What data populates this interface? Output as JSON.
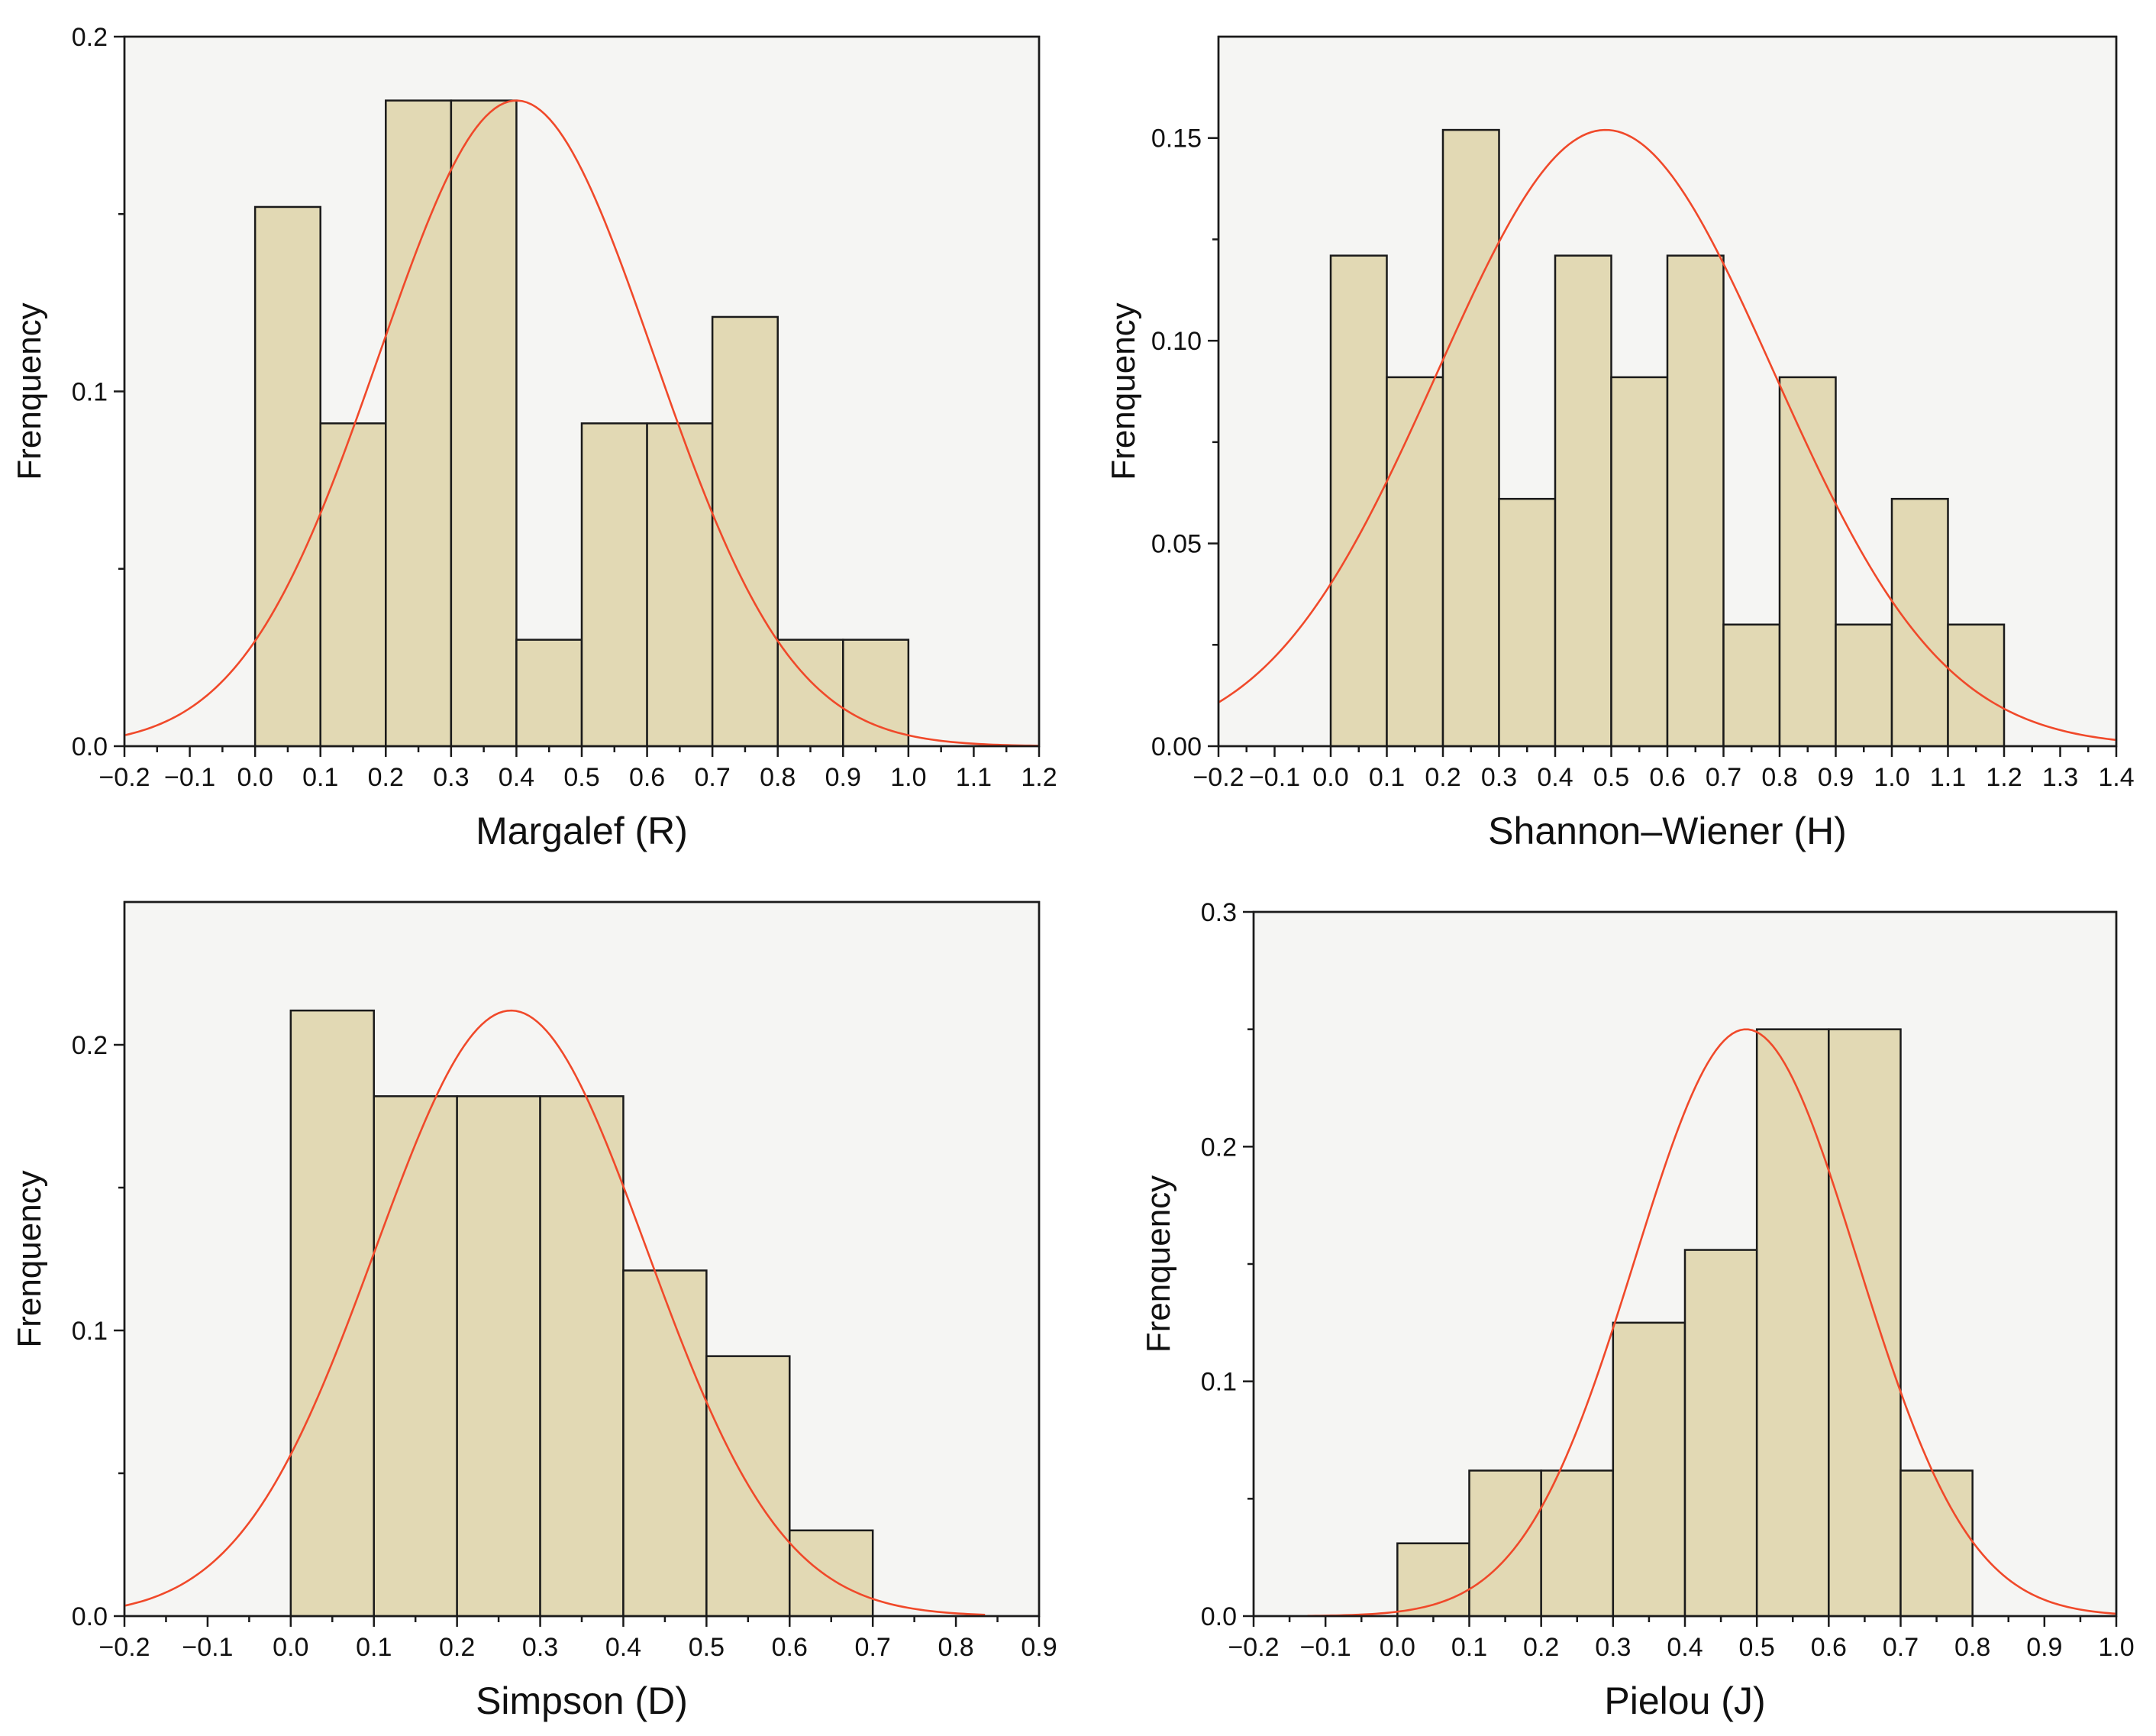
{
  "chart_data": [
    {
      "type": "bar",
      "xlabel": "Margalef (R)",
      "ylabel": "Frenquency",
      "xlim": [
        -0.2,
        1.2
      ],
      "ylim": [
        0,
        0.2
      ],
      "xticks": [
        "−0.2",
        "−0.1",
        "0.0",
        "0.1",
        "0.2",
        "0.3",
        "0.4",
        "0.5",
        "0.6",
        "0.7",
        "0.8",
        "0.9",
        "1.0",
        "1.1",
        "1.2"
      ],
      "yticks": [
        "0.0",
        "0.1",
        "0.2"
      ],
      "bins": [
        [
          0.0,
          0.1
        ],
        [
          0.1,
          0.2
        ],
        [
          0.2,
          0.3
        ],
        [
          0.3,
          0.4
        ],
        [
          0.4,
          0.5
        ],
        [
          0.5,
          0.6
        ],
        [
          0.6,
          0.7
        ],
        [
          0.7,
          0.8
        ],
        [
          0.8,
          0.9
        ],
        [
          0.9,
          1.0
        ]
      ],
      "values": [
        0.152,
        0.091,
        0.182,
        0.182,
        0.03,
        0.091,
        0.091,
        0.121,
        0.03,
        0.03
      ],
      "fit_curve": {
        "type": "normal",
        "mean": 0.4,
        "sd": 0.21,
        "peak": 0.182,
        "x_range": [
          -0.2,
          1.2
        ]
      },
      "grid": false
    },
    {
      "type": "bar",
      "xlabel": "Shannon–Wiener (H)",
      "ylabel": "Frenquency",
      "xlim": [
        -0.2,
        1.4
      ],
      "ylim": [
        0,
        0.175
      ],
      "xticks": [
        "−0.2",
        "−0.1",
        "0.0",
        "0.1",
        "0.2",
        "0.3",
        "0.4",
        "0.5",
        "0.6",
        "0.7",
        "0.8",
        "0.9",
        "1.0",
        "1.1",
        "1.2",
        "1.3",
        "1.4"
      ],
      "yticks": [
        "0.00",
        "0.05",
        "0.10",
        "0.15"
      ],
      "bins": [
        [
          0.0,
          0.1
        ],
        [
          0.1,
          0.2
        ],
        [
          0.2,
          0.3
        ],
        [
          0.3,
          0.4
        ],
        [
          0.4,
          0.5
        ],
        [
          0.5,
          0.6
        ],
        [
          0.6,
          0.7
        ],
        [
          0.7,
          0.8
        ],
        [
          0.8,
          0.9
        ],
        [
          0.9,
          1.0
        ],
        [
          1.0,
          1.1
        ],
        [
          1.1,
          1.2
        ]
      ],
      "values": [
        0.121,
        0.091,
        0.152,
        0.061,
        0.121,
        0.091,
        0.121,
        0.03,
        0.091,
        0.03,
        0.061,
        0.03
      ],
      "fit_curve": {
        "type": "normal",
        "mean": 0.49,
        "sd": 0.3,
        "peak": 0.152,
        "x_range": [
          -0.2,
          1.4
        ]
      },
      "grid": false
    },
    {
      "type": "bar",
      "xlabel": "Simpson (D)",
      "ylabel": "Frenquency",
      "xlim": [
        -0.2,
        0.9
      ],
      "ylim": [
        0,
        0.25
      ],
      "xticks": [
        "−0.2",
        "−0.1",
        "0.0",
        "0.1",
        "0.2",
        "0.3",
        "0.4",
        "0.5",
        "0.6",
        "0.7",
        "0.8",
        "0.9"
      ],
      "yticks": [
        "0.0",
        "0.1",
        "0.2"
      ],
      "bins": [
        [
          0.0,
          0.1
        ],
        [
          0.1,
          0.2
        ],
        [
          0.2,
          0.3
        ],
        [
          0.3,
          0.4
        ],
        [
          0.4,
          0.5
        ],
        [
          0.5,
          0.6
        ],
        [
          0.6,
          0.7
        ]
      ],
      "values": [
        0.212,
        0.182,
        0.182,
        0.182,
        0.121,
        0.091,
        0.03
      ],
      "fit_curve": {
        "type": "normal",
        "mean": 0.265,
        "sd": 0.163,
        "peak": 0.212,
        "x_range": [
          -0.2,
          0.835
        ]
      },
      "grid": false
    },
    {
      "type": "bar",
      "xlabel": "Pielou (J)",
      "ylabel": "Frenquency",
      "xlim": [
        -0.2,
        1.0
      ],
      "ylim": [
        0,
        0.3
      ],
      "xticks": [
        "−0.2",
        "−0.1",
        "0.0",
        "0.1",
        "0.2",
        "0.3",
        "0.4",
        "0.5",
        "0.6",
        "0.7",
        "0.8",
        "0.9",
        "1.0"
      ],
      "yticks": [
        "0.0",
        "0.1",
        "0.2",
        "0.3"
      ],
      "bins": [
        [
          0.0,
          0.1
        ],
        [
          0.1,
          0.2
        ],
        [
          0.2,
          0.3
        ],
        [
          0.3,
          0.4
        ],
        [
          0.4,
          0.5
        ],
        [
          0.5,
          0.6
        ],
        [
          0.6,
          0.7
        ],
        [
          0.7,
          0.8
        ]
      ],
      "values": [
        0.031,
        0.062,
        0.062,
        0.125,
        0.156,
        0.25,
        0.25,
        0.062
      ],
      "fit_curve": {
        "type": "normal",
        "mean": 0.485,
        "sd": 0.155,
        "peak": 0.25,
        "x_range": [
          -0.125,
          1.0
        ]
      },
      "grid": false
    }
  ]
}
